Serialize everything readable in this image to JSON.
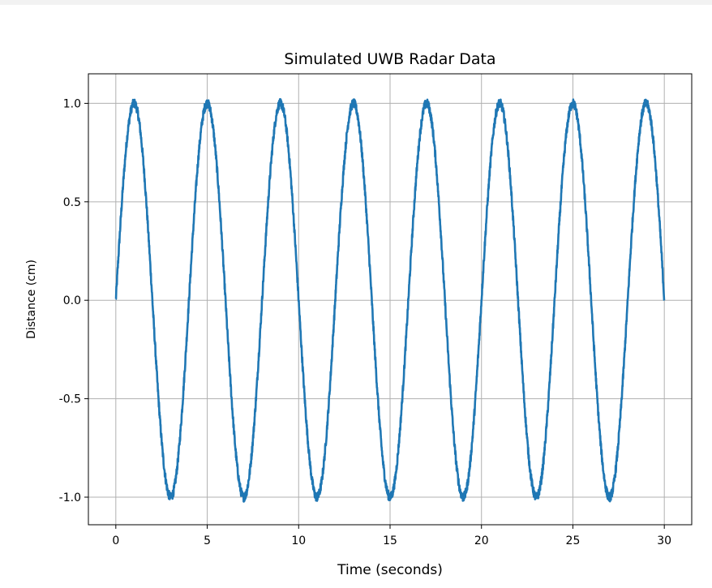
{
  "chart_data": {
    "type": "line",
    "title": "Simulated UWB Radar Data",
    "xlabel": "Time (seconds)",
    "ylabel": "Distance (cm)",
    "xlim": [
      -1.5,
      31.5
    ],
    "ylim": [
      -1.14,
      1.15
    ],
    "xticks": [
      0,
      5,
      10,
      15,
      20,
      25,
      30
    ],
    "yticks": [
      -1.0,
      -0.5,
      0.0,
      0.5,
      1.0
    ],
    "ytick_labels": [
      "-1.0",
      "-0.5",
      "0.0",
      "0.5",
      "1.0"
    ],
    "grid": true,
    "series": [
      {
        "color": "#1f77b4",
        "function": "sin(2*pi*0.25*t)",
        "amplitude": 1.0,
        "frequency_hz": 0.25,
        "t_start": 0,
        "t_end": 30
      }
    ]
  },
  "colors": {
    "line": "#1f77b4",
    "grid": "#b0b0b0",
    "axes": "#000000"
  }
}
